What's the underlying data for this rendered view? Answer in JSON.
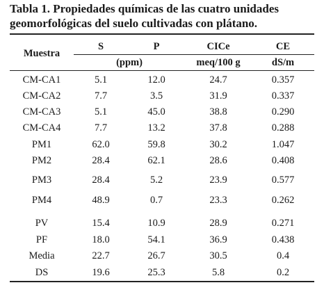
{
  "caption": {
    "line1": "Tabla 1. Propiedades químicas de las cuatro unidades",
    "line2": "geomorfológicas del suelo cultivadas con plátano."
  },
  "headers": {
    "sample": "Muestra",
    "s": "S",
    "p": "P",
    "cice": "CICe",
    "ce": "CE",
    "unit_sp": "(ppm)",
    "unit_cice": "meq/100 g",
    "unit_ce": "dS/m"
  },
  "rows": [
    {
      "sample": "CM-CA1",
      "s": "5.1",
      "p": "12.0",
      "cice": "24.7",
      "ce": "0.357"
    },
    {
      "sample": "CM-CA2",
      "s": "7.7",
      "p": "3.5",
      "cice": "31.9",
      "ce": "0.337"
    },
    {
      "sample": "CM-CA3",
      "s": "5.1",
      "p": "45.0",
      "cice": "38.8",
      "ce": "0.290"
    },
    {
      "sample": "CM-CA4",
      "s": "7.7",
      "p": "13.2",
      "cice": "37.8",
      "ce": "0.288"
    },
    {
      "sample": "PM1",
      "s": "62.0",
      "p": "59.8",
      "cice": "30.2",
      "ce": "1.047"
    },
    {
      "sample": "PM2",
      "s": "28.4",
      "p": "62.1",
      "cice": "28.6",
      "ce": "0.408"
    },
    {
      "sample": "PM3",
      "s": "28.4",
      "p": "5.2",
      "cice": "23.9",
      "ce": "0.577"
    },
    {
      "sample": "PM4",
      "s": "48.9",
      "p": "0.7",
      "cice": "23.3",
      "ce": "0.262"
    },
    {
      "sample": "PV",
      "s": "15.4",
      "p": "10.9",
      "cice": "28.9",
      "ce": "0.271"
    },
    {
      "sample": "PF",
      "s": "18.0",
      "p": "54.1",
      "cice": "36.9",
      "ce": "0.438"
    },
    {
      "sample": "Media",
      "s": "22.7",
      "p": "26.7",
      "cice": "30.5",
      "ce": "0.4"
    },
    {
      "sample": "DS",
      "s": "19.6",
      "p": "25.3",
      "cice": "5.8",
      "ce": "0.2"
    }
  ]
}
